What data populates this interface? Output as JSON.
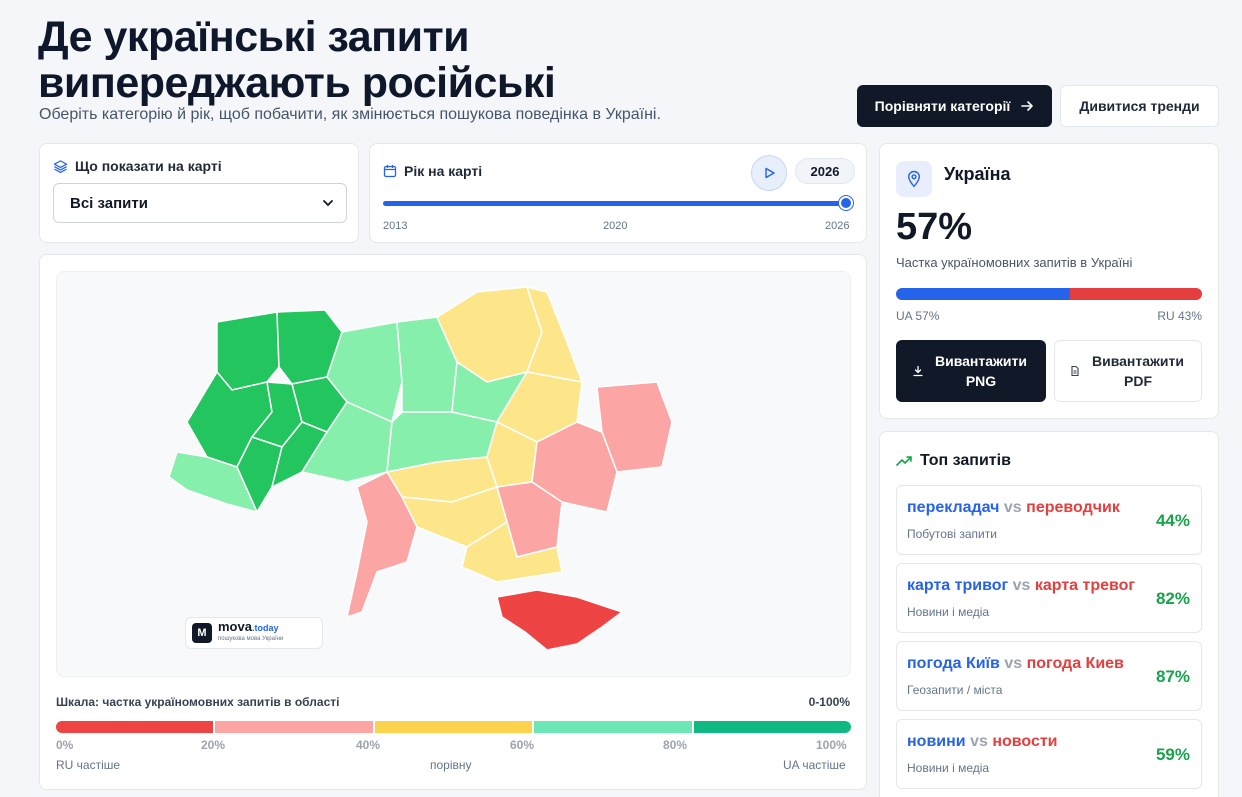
{
  "header": {
    "title_line1": "Де українські запити",
    "title_line2": "випереджають російські",
    "subtitle": "Оберіть категорію й рік, щоб побачити, як змінюється пошукова поведінка в Україні.",
    "compare_button": "Порівняти категорії",
    "trends_button": "Дивитися тренди"
  },
  "filter": {
    "label": "Що показати на карті",
    "selected": "Всі запити"
  },
  "year": {
    "label": "Рік на карті",
    "current": "2026",
    "slider_fraction": 1.0,
    "ticks": [
      "2013",
      "2020",
      "2026"
    ]
  },
  "map": {
    "logo_name": "mova",
    "logo_suffix": ".today",
    "logo_tagline": "пошукова мова України",
    "regions": {
      "west_dark": "#22c55e",
      "central_light": "#86efac",
      "east_yellow": "#fde68a",
      "east_pink": "#fca5a5",
      "crimea": "#ef4444"
    }
  },
  "scale": {
    "title": "Шкала: частка україномовних запитів в області",
    "range": "0-100%",
    "colors": [
      "#ef4444",
      "#fca5a5",
      "#fcd34d",
      "#6ee7b7",
      "#10b981"
    ],
    "ticks": [
      "0%",
      "20%",
      "40%",
      "60%",
      "80%",
      "100%"
    ],
    "note_left": "RU частіше",
    "note_center": "порівну",
    "note_right": "UA частіше"
  },
  "region_panel": {
    "name": "Україна",
    "percent": "57%",
    "caption": "Частка україномовних запитів в Україні",
    "ua_share": 57,
    "ua_label": "UA 57%",
    "ru_label": "RU 43%",
    "colors": {
      "ua": "#2563eb",
      "ru": "#e53e3e"
    },
    "png_button": "Вивантажити PNG",
    "pdf_button": "Вивантажити PDF"
  },
  "top_queries": {
    "title": "Топ запитів",
    "vs": "vs",
    "items": [
      {
        "ua": "перекладач",
        "ru": "переводчик",
        "category": "Побутові запити",
        "percent": "44%"
      },
      {
        "ua": "карта тривог",
        "ru": "карта тревог",
        "category": "Новини і медіа",
        "percent": "82%"
      },
      {
        "ua": "погода Київ",
        "ru": "погода Киев",
        "category": "Геозапити / міста",
        "percent": "87%"
      },
      {
        "ua": "новини",
        "ru": "новости",
        "category": "Новини і медіа",
        "percent": "59%"
      }
    ]
  }
}
